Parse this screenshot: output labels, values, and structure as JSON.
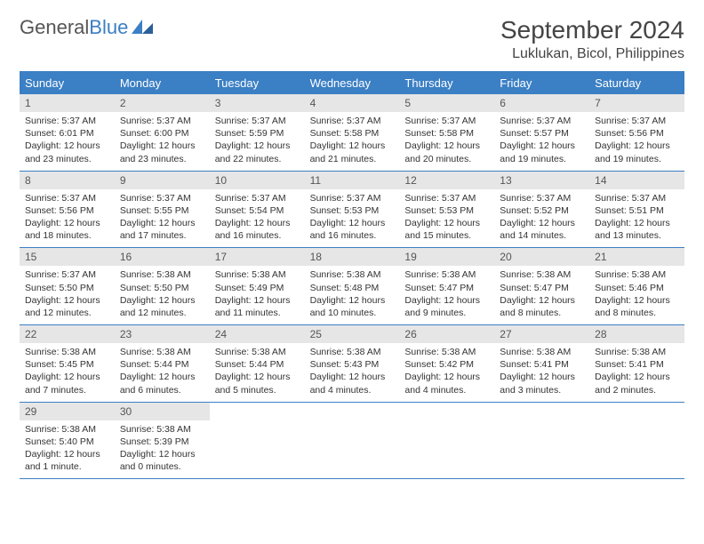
{
  "logo": {
    "text1": "General",
    "text2": "Blue"
  },
  "title": "September 2024",
  "location": "Luklukan, Bicol, Philippines",
  "colors": {
    "header_bg": "#3b7fc4",
    "header_text": "#ffffff",
    "daynum_bg": "#e6e6e6",
    "border": "#3b7fc4",
    "body_text": "#333333",
    "title_text": "#444444"
  },
  "day_headers": [
    "Sunday",
    "Monday",
    "Tuesday",
    "Wednesday",
    "Thursday",
    "Friday",
    "Saturday"
  ],
  "days": [
    {
      "n": "1",
      "sr": "Sunrise: 5:37 AM",
      "ss": "Sunset: 6:01 PM",
      "d1": "Daylight: 12 hours",
      "d2": "and 23 minutes."
    },
    {
      "n": "2",
      "sr": "Sunrise: 5:37 AM",
      "ss": "Sunset: 6:00 PM",
      "d1": "Daylight: 12 hours",
      "d2": "and 23 minutes."
    },
    {
      "n": "3",
      "sr": "Sunrise: 5:37 AM",
      "ss": "Sunset: 5:59 PM",
      "d1": "Daylight: 12 hours",
      "d2": "and 22 minutes."
    },
    {
      "n": "4",
      "sr": "Sunrise: 5:37 AM",
      "ss": "Sunset: 5:58 PM",
      "d1": "Daylight: 12 hours",
      "d2": "and 21 minutes."
    },
    {
      "n": "5",
      "sr": "Sunrise: 5:37 AM",
      "ss": "Sunset: 5:58 PM",
      "d1": "Daylight: 12 hours",
      "d2": "and 20 minutes."
    },
    {
      "n": "6",
      "sr": "Sunrise: 5:37 AM",
      "ss": "Sunset: 5:57 PM",
      "d1": "Daylight: 12 hours",
      "d2": "and 19 minutes."
    },
    {
      "n": "7",
      "sr": "Sunrise: 5:37 AM",
      "ss": "Sunset: 5:56 PM",
      "d1": "Daylight: 12 hours",
      "d2": "and 19 minutes."
    },
    {
      "n": "8",
      "sr": "Sunrise: 5:37 AM",
      "ss": "Sunset: 5:56 PM",
      "d1": "Daylight: 12 hours",
      "d2": "and 18 minutes."
    },
    {
      "n": "9",
      "sr": "Sunrise: 5:37 AM",
      "ss": "Sunset: 5:55 PM",
      "d1": "Daylight: 12 hours",
      "d2": "and 17 minutes."
    },
    {
      "n": "10",
      "sr": "Sunrise: 5:37 AM",
      "ss": "Sunset: 5:54 PM",
      "d1": "Daylight: 12 hours",
      "d2": "and 16 minutes."
    },
    {
      "n": "11",
      "sr": "Sunrise: 5:37 AM",
      "ss": "Sunset: 5:53 PM",
      "d1": "Daylight: 12 hours",
      "d2": "and 16 minutes."
    },
    {
      "n": "12",
      "sr": "Sunrise: 5:37 AM",
      "ss": "Sunset: 5:53 PM",
      "d1": "Daylight: 12 hours",
      "d2": "and 15 minutes."
    },
    {
      "n": "13",
      "sr": "Sunrise: 5:37 AM",
      "ss": "Sunset: 5:52 PM",
      "d1": "Daylight: 12 hours",
      "d2": "and 14 minutes."
    },
    {
      "n": "14",
      "sr": "Sunrise: 5:37 AM",
      "ss": "Sunset: 5:51 PM",
      "d1": "Daylight: 12 hours",
      "d2": "and 13 minutes."
    },
    {
      "n": "15",
      "sr": "Sunrise: 5:37 AM",
      "ss": "Sunset: 5:50 PM",
      "d1": "Daylight: 12 hours",
      "d2": "and 12 minutes."
    },
    {
      "n": "16",
      "sr": "Sunrise: 5:38 AM",
      "ss": "Sunset: 5:50 PM",
      "d1": "Daylight: 12 hours",
      "d2": "and 12 minutes."
    },
    {
      "n": "17",
      "sr": "Sunrise: 5:38 AM",
      "ss": "Sunset: 5:49 PM",
      "d1": "Daylight: 12 hours",
      "d2": "and 11 minutes."
    },
    {
      "n": "18",
      "sr": "Sunrise: 5:38 AM",
      "ss": "Sunset: 5:48 PM",
      "d1": "Daylight: 12 hours",
      "d2": "and 10 minutes."
    },
    {
      "n": "19",
      "sr": "Sunrise: 5:38 AM",
      "ss": "Sunset: 5:47 PM",
      "d1": "Daylight: 12 hours",
      "d2": "and 9 minutes."
    },
    {
      "n": "20",
      "sr": "Sunrise: 5:38 AM",
      "ss": "Sunset: 5:47 PM",
      "d1": "Daylight: 12 hours",
      "d2": "and 8 minutes."
    },
    {
      "n": "21",
      "sr": "Sunrise: 5:38 AM",
      "ss": "Sunset: 5:46 PM",
      "d1": "Daylight: 12 hours",
      "d2": "and 8 minutes."
    },
    {
      "n": "22",
      "sr": "Sunrise: 5:38 AM",
      "ss": "Sunset: 5:45 PM",
      "d1": "Daylight: 12 hours",
      "d2": "and 7 minutes."
    },
    {
      "n": "23",
      "sr": "Sunrise: 5:38 AM",
      "ss": "Sunset: 5:44 PM",
      "d1": "Daylight: 12 hours",
      "d2": "and 6 minutes."
    },
    {
      "n": "24",
      "sr": "Sunrise: 5:38 AM",
      "ss": "Sunset: 5:44 PM",
      "d1": "Daylight: 12 hours",
      "d2": "and 5 minutes."
    },
    {
      "n": "25",
      "sr": "Sunrise: 5:38 AM",
      "ss": "Sunset: 5:43 PM",
      "d1": "Daylight: 12 hours",
      "d2": "and 4 minutes."
    },
    {
      "n": "26",
      "sr": "Sunrise: 5:38 AM",
      "ss": "Sunset: 5:42 PM",
      "d1": "Daylight: 12 hours",
      "d2": "and 4 minutes."
    },
    {
      "n": "27",
      "sr": "Sunrise: 5:38 AM",
      "ss": "Sunset: 5:41 PM",
      "d1": "Daylight: 12 hours",
      "d2": "and 3 minutes."
    },
    {
      "n": "28",
      "sr": "Sunrise: 5:38 AM",
      "ss": "Sunset: 5:41 PM",
      "d1": "Daylight: 12 hours",
      "d2": "and 2 minutes."
    },
    {
      "n": "29",
      "sr": "Sunrise: 5:38 AM",
      "ss": "Sunset: 5:40 PM",
      "d1": "Daylight: 12 hours",
      "d2": "and 1 minute."
    },
    {
      "n": "30",
      "sr": "Sunrise: 5:38 AM",
      "ss": "Sunset: 5:39 PM",
      "d1": "Daylight: 12 hours",
      "d2": "and 0 minutes."
    }
  ],
  "layout": {
    "leading_blanks": 0,
    "trailing_blanks": 5
  }
}
